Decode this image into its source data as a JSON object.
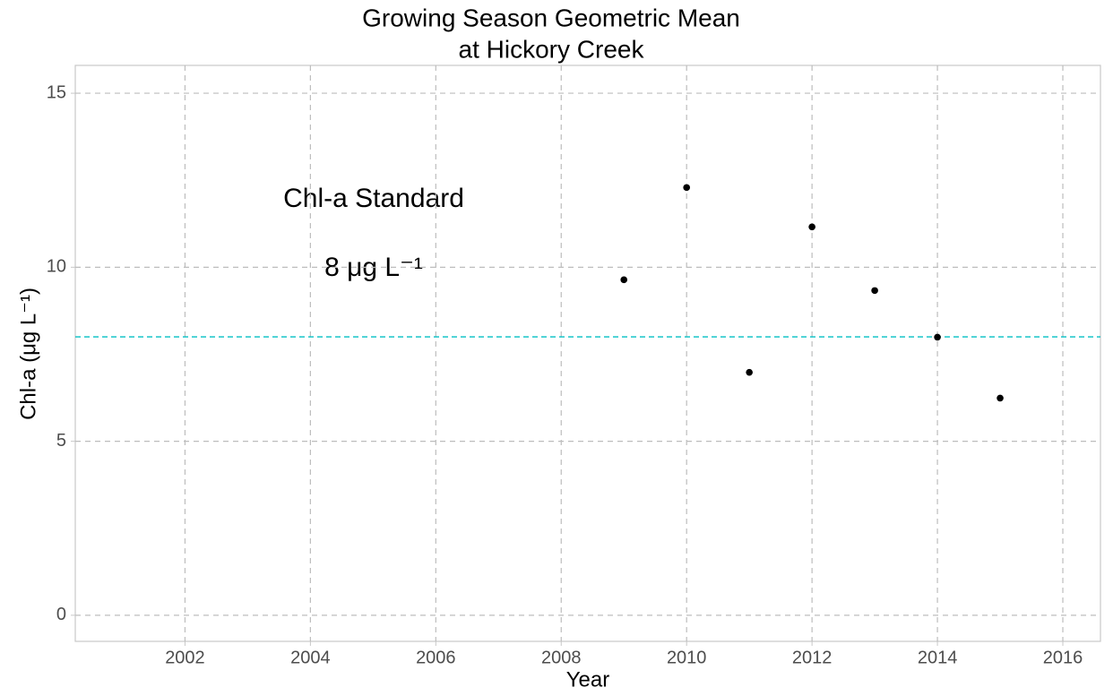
{
  "chart_data": {
    "type": "scatter",
    "title": [
      "Growing Season Geometric Mean",
      "at Hickory Creek"
    ],
    "x_label": "Year",
    "y_label": "Chl-a (μg L⁻¹)",
    "x": [
      2009,
      2010,
      2011,
      2012,
      2013,
      2014,
      2015
    ],
    "values": [
      9.64,
      12.29,
      6.98,
      11.16,
      9.33,
      7.99,
      6.24
    ],
    "color": "#000000",
    "reference_line": {
      "value": 8,
      "color": "#00BFC4"
    },
    "annotations": [
      "Chl-a Standard",
      "8 μg L⁻¹"
    ],
    "xlim": [
      2000.25,
      2016.6
    ],
    "xticks": [
      2002,
      2004,
      2006,
      2008,
      2010,
      2012,
      2014,
      2016
    ],
    "ylim": [
      -0.75,
      15.8
    ],
    "yticks": [
      0,
      5,
      10,
      15
    ],
    "grid": true
  }
}
